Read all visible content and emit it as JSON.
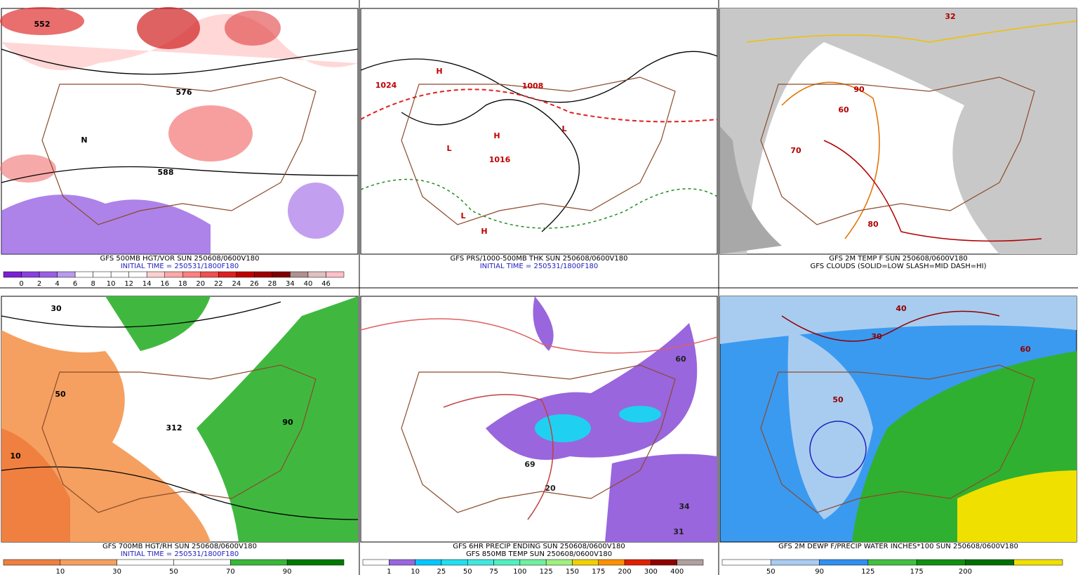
{
  "panels": [
    {
      "caption": [
        "GFS 500MB HGT/VOR SUN 250608/0600V180",
        "INITIAL TIME = 250531/1800F180"
      ],
      "map_labels": [
        "552",
        "576",
        "588",
        "N"
      ],
      "colorbar": {
        "labels": [
          "0",
          "2",
          "4",
          "6",
          "8",
          "10",
          "12",
          "14",
          "16",
          "18",
          "20",
          "22",
          "24",
          "26",
          "28",
          "34",
          "40",
          "46"
        ],
        "colors": [
          "#7a1fd6",
          "#8a3fe0",
          "#9b5fe6",
          "#b89aee",
          "#ffffff",
          "#ffffff",
          "#ffffff",
          "#ffffff",
          "#ffd0d0",
          "#ffa8a8",
          "#ff8080",
          "#f05050",
          "#e02020",
          "#c00000",
          "#a00000",
          "#800000",
          "#b09090",
          "#e0c0c0",
          "#ffc0c8"
        ]
      }
    },
    {
      "caption": [
        "GFS PRS/1000-500MB THK SUN 250608/0600V180",
        "INITIAL TIME = 250531/1800F180"
      ],
      "map_labels": [
        "H",
        "H",
        "H",
        "L",
        "L",
        "L",
        "1008",
        "1016",
        "1024"
      ]
    },
    {
      "caption": [
        "GFS 2M TEMP F SUN 250608/0600V180",
        "GFS CLOUDS (SOLID=LOW SLASH=MID DASH=HI)"
      ],
      "map_labels": [
        "80",
        "70",
        "60",
        "90",
        "32"
      ]
    },
    {
      "caption": [
        "GFS 700MB HGT/RH SUN 250608/0600V180",
        "INITIAL TIME = 250531/1800F180"
      ],
      "map_labels": [
        "50",
        "10",
        "90",
        "312",
        "30"
      ],
      "colorbar": {
        "labels": [
          "10",
          "30",
          "50",
          "70",
          "90"
        ],
        "colors": [
          "#f08040",
          "#f5a060",
          "#ffffff",
          "#ffffff",
          "#38b838",
          "#007a00"
        ]
      }
    },
    {
      "caption": [
        "GFS 6HR PRECIP ENDING SUN 250608/0600V180",
        "GFS 850MB TEMP SUN 250608/0600V180"
      ],
      "map_labels": [
        "60",
        "34",
        "31",
        "69",
        "20"
      ],
      "colorbar": {
        "labels": [
          "1",
          "10",
          "25",
          "50",
          "75",
          "100",
          "125",
          "150",
          "175",
          "200",
          "300",
          "400"
        ],
        "colors": [
          "#ffffff",
          "#9966dd",
          "#00c8ff",
          "#20e0f0",
          "#40e8e0",
          "#50f0c0",
          "#70f0a0",
          "#a0f080",
          "#f0d000",
          "#ff9000",
          "#e02000",
          "#900000",
          "#b0a0a0"
        ]
      }
    },
    {
      "caption": [
        "GFS 2M DEWP F/PRECIP WATER INCHES*100 SUN 250608/0600V180"
      ],
      "map_labels": [
        "30",
        "40",
        "60",
        "50"
      ],
      "colorbar": {
        "labels": [
          "50",
          "90",
          "125",
          "175",
          "200"
        ],
        "colors": [
          "#ffffff",
          "#a8ccf0",
          "#3090f0",
          "#40c040",
          "#109010",
          "#007000",
          "#f0e000"
        ]
      }
    }
  ]
}
